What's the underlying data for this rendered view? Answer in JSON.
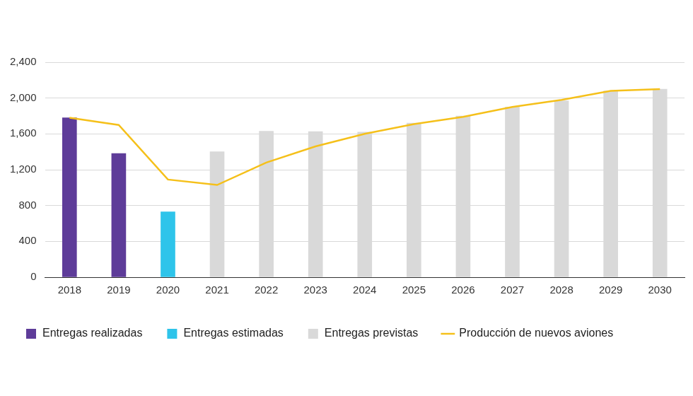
{
  "chart_data": {
    "type": "bar",
    "categories": [
      "2018",
      "2019",
      "2020",
      "2021",
      "2022",
      "2023",
      "2024",
      "2025",
      "2026",
      "2027",
      "2028",
      "2029",
      "2030"
    ],
    "series": [
      {
        "name": "Entregas realizadas",
        "type": "bar",
        "color": "#5e3c99",
        "values": [
          1780,
          1380,
          null,
          null,
          null,
          null,
          null,
          null,
          null,
          null,
          null,
          null,
          null
        ]
      },
      {
        "name": "Entregas estimadas",
        "type": "bar",
        "color": "#2ec4ea",
        "values": [
          null,
          null,
          730,
          null,
          null,
          null,
          null,
          null,
          null,
          null,
          null,
          null,
          null
        ]
      },
      {
        "name": "Entregas previstas",
        "type": "bar",
        "color": "#d9d9d9",
        "values": [
          null,
          null,
          null,
          1400,
          1630,
          1625,
          1620,
          1720,
          1800,
          1900,
          1970,
          2080,
          2100
        ]
      },
      {
        "name": "Producción de nuevos aviones",
        "type": "line",
        "color": "#f5c01a",
        "marker": "none",
        "values": [
          1780,
          1700,
          1090,
          1030,
          1280,
          1460,
          1600,
          1710,
          1790,
          1900,
          1980,
          2080,
          2100
        ]
      }
    ],
    "ylim": [
      0,
      2400
    ],
    "yticks": [
      0,
      400,
      800,
      {
        "value": 1200,
        "label": "1,200"
      },
      {
        "value": 1600,
        "label": "1,600"
      },
      {
        "value": 2000,
        "label": "2,000"
      },
      {
        "value": 2400,
        "label": "2,400"
      }
    ],
    "grid": true,
    "legend": "bottom"
  }
}
